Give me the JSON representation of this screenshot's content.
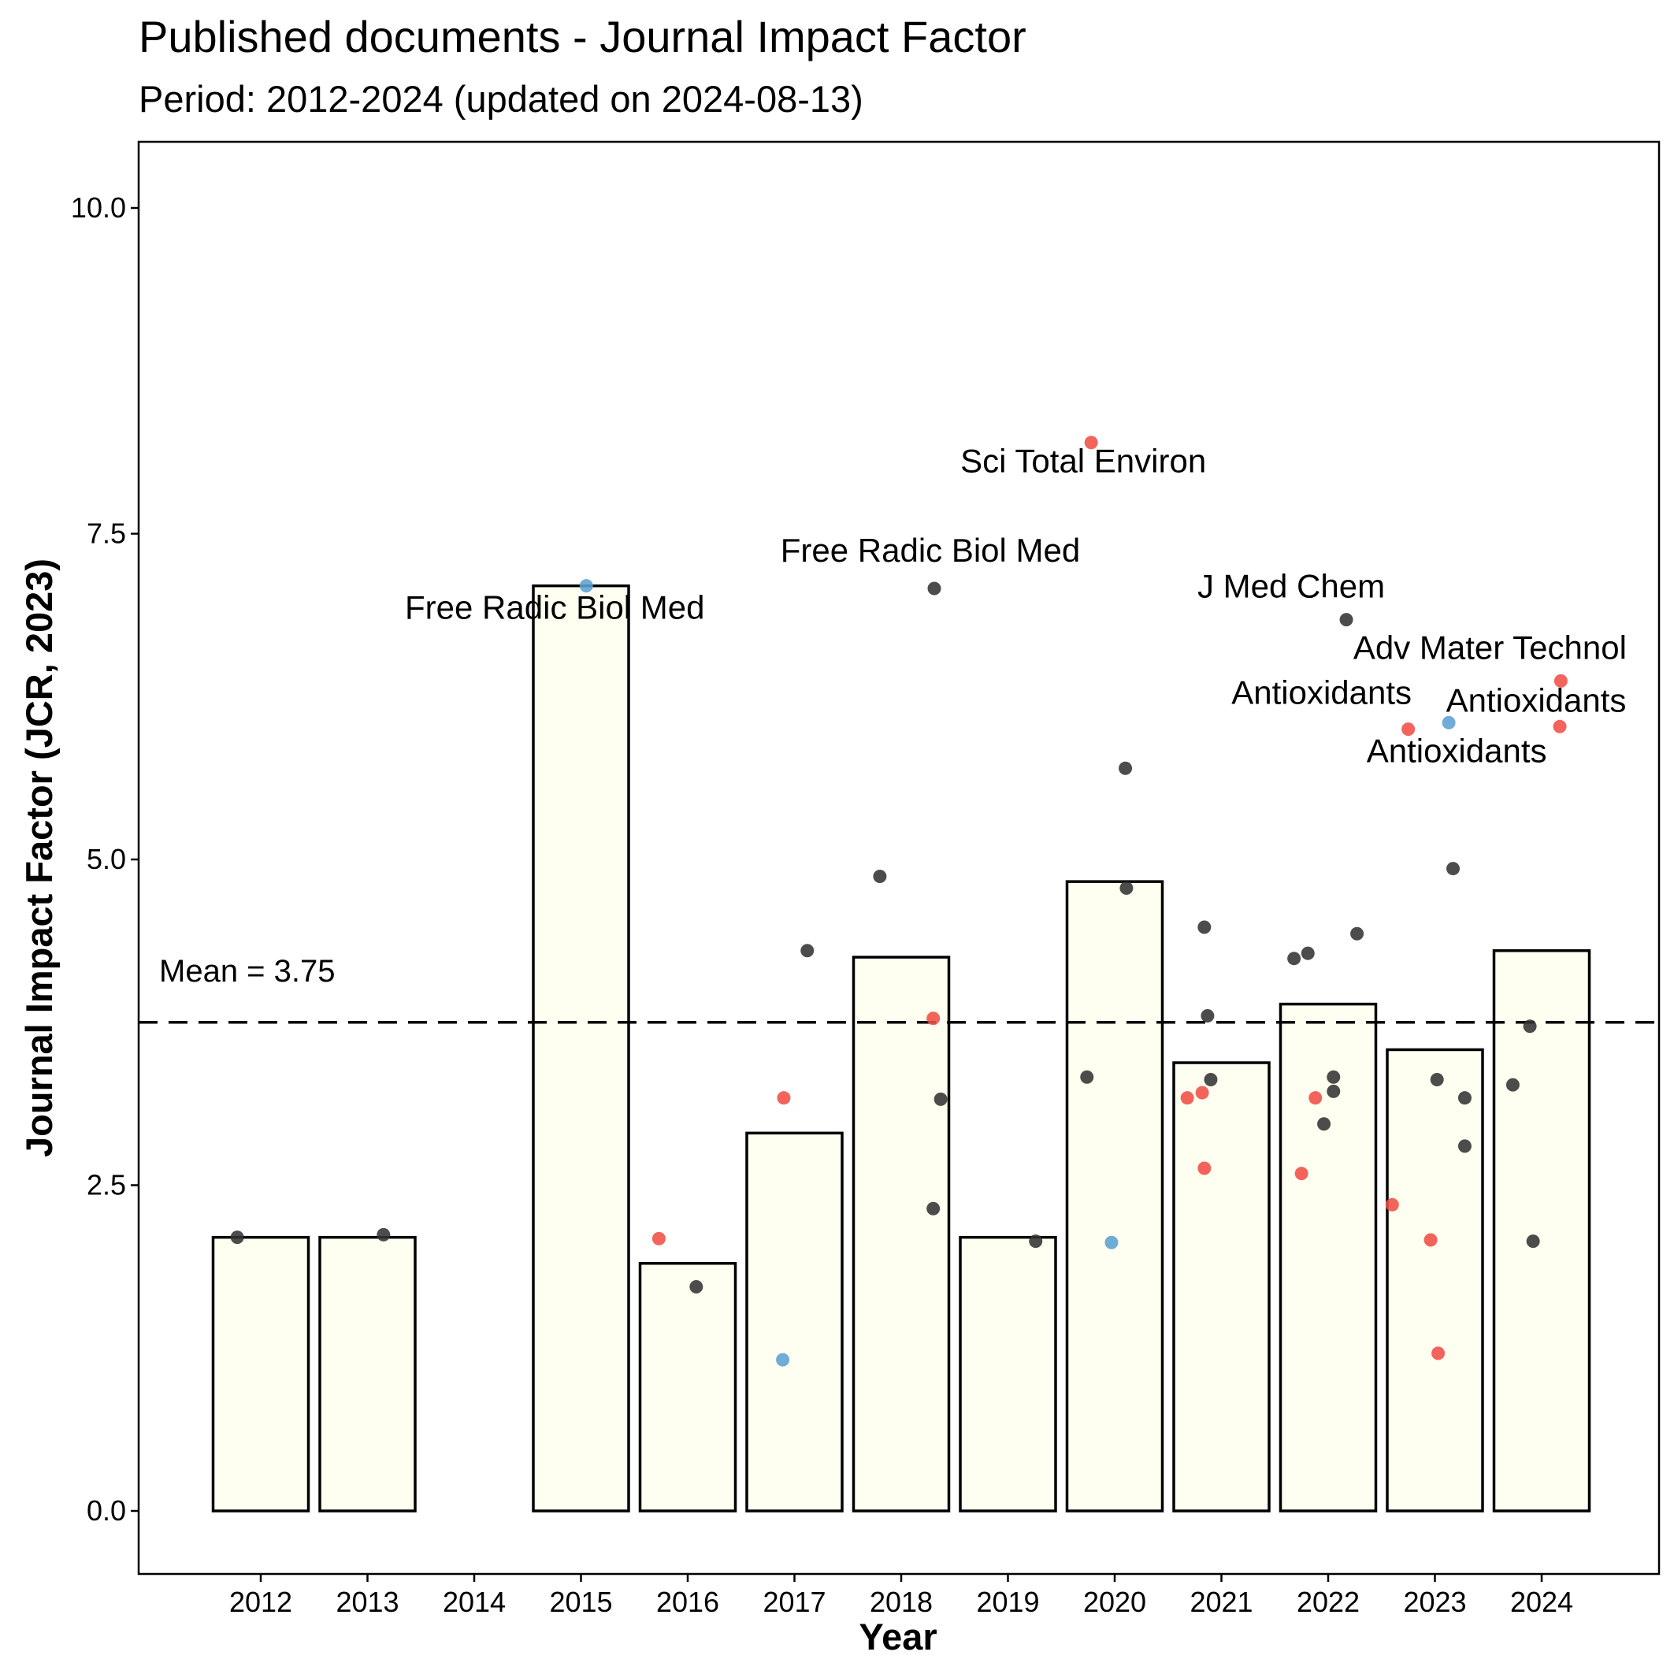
{
  "chart_data": {
    "type": "bar",
    "title": "Published documents - Journal Impact Factor",
    "subtitle": "Period: 2012-2024 (updated on 2024-08-13)",
    "xlabel": "Year",
    "ylabel": "Journal Impact Factor (JCR, 2023)",
    "ylim": [
      -0.5,
      10.5
    ],
    "yticks": [
      0.0,
      2.5,
      5.0,
      7.5,
      10.0
    ],
    "ytick_labels": [
      "0.0",
      "2.5",
      "5.0",
      "7.5",
      "10.0"
    ],
    "categories": [
      "2012",
      "2013",
      "2014",
      "2015",
      "2016",
      "2017",
      "2018",
      "2019",
      "2020",
      "2021",
      "2022",
      "2023",
      "2024"
    ],
    "bar_values": [
      2.1,
      2.1,
      null,
      7.1,
      1.9,
      2.9,
      4.25,
      2.1,
      4.83,
      3.44,
      3.89,
      3.54,
      4.3
    ],
    "mean": 3.75,
    "mean_label": "Mean = 3.75",
    "bar_fill": "#FEFFF0",
    "bar_stroke": "#000000",
    "point_colors": {
      "black": "#333333",
      "red": "#F04E45",
      "blue": "#5BA1D1"
    },
    "points": [
      {
        "year": "2012",
        "offset": -0.22,
        "value": 2.1,
        "color": "black"
      },
      {
        "year": "2013",
        "offset": 0.15,
        "value": 2.12,
        "color": "black"
      },
      {
        "year": "2015",
        "offset": 0.05,
        "value": 7.1,
        "color": "blue",
        "label": "Free Radic Biol Med"
      },
      {
        "year": "2016",
        "offset": -0.27,
        "value": 2.09,
        "color": "red"
      },
      {
        "year": "2016",
        "offset": 0.08,
        "value": 1.72,
        "color": "black"
      },
      {
        "year": "2017",
        "offset": -0.1,
        "value": 3.17,
        "color": "red"
      },
      {
        "year": "2017",
        "offset": 0.12,
        "value": 4.3,
        "color": "black"
      },
      {
        "year": "2017",
        "offset": -0.11,
        "value": 1.16,
        "color": "blue"
      },
      {
        "year": "2018",
        "offset": -0.2,
        "value": 4.87,
        "color": "black"
      },
      {
        "year": "2018",
        "offset": 0.31,
        "value": 7.08,
        "color": "black",
        "label": "Free Radic Biol Med"
      },
      {
        "year": "2018",
        "offset": 0.3,
        "value": 3.78,
        "color": "red"
      },
      {
        "year": "2018",
        "offset": 0.37,
        "value": 3.16,
        "color": "black"
      },
      {
        "year": "2018",
        "offset": 0.3,
        "value": 2.32,
        "color": "black"
      },
      {
        "year": "2019",
        "offset": 0.26,
        "value": 2.07,
        "color": "black"
      },
      {
        "year": "2020",
        "offset": -0.22,
        "value": 8.2,
        "color": "red",
        "label": "Sci Total Environ"
      },
      {
        "year": "2020",
        "offset": 0.1,
        "value": 5.7,
        "color": "black"
      },
      {
        "year": "2020",
        "offset": 0.11,
        "value": 4.78,
        "color": "black"
      },
      {
        "year": "2020",
        "offset": -0.26,
        "value": 3.33,
        "color": "black"
      },
      {
        "year": "2020",
        "offset": -0.03,
        "value": 2.06,
        "color": "blue"
      },
      {
        "year": "2021",
        "offset": -0.16,
        "value": 4.48,
        "color": "black"
      },
      {
        "year": "2021",
        "offset": -0.13,
        "value": 3.8,
        "color": "black"
      },
      {
        "year": "2021",
        "offset": -0.1,
        "value": 3.31,
        "color": "black"
      },
      {
        "year": "2021",
        "offset": -0.32,
        "value": 3.17,
        "color": "red"
      },
      {
        "year": "2021",
        "offset": -0.18,
        "value": 3.21,
        "color": "red"
      },
      {
        "year": "2021",
        "offset": -0.16,
        "value": 2.63,
        "color": "red"
      },
      {
        "year": "2022",
        "offset": -0.32,
        "value": 4.24,
        "color": "black"
      },
      {
        "year": "2022",
        "offset": -0.19,
        "value": 4.28,
        "color": "black"
      },
      {
        "year": "2022",
        "offset": 0.17,
        "value": 6.84,
        "color": "black",
        "label": "J Med Chem"
      },
      {
        "year": "2022",
        "offset": 0.27,
        "value": 4.43,
        "color": "black"
      },
      {
        "year": "2022",
        "offset": 0.05,
        "value": 3.33,
        "color": "black"
      },
      {
        "year": "2022",
        "offset": 0.05,
        "value": 3.22,
        "color": "black"
      },
      {
        "year": "2022",
        "offset": -0.12,
        "value": 3.17,
        "color": "red"
      },
      {
        "year": "2022",
        "offset": -0.04,
        "value": 2.97,
        "color": "black"
      },
      {
        "year": "2022",
        "offset": -0.25,
        "value": 2.59,
        "color": "red"
      },
      {
        "year": "2023",
        "offset": -0.25,
        "value": 6.0,
        "color": "red",
        "label": "Antioxidants"
      },
      {
        "year": "2023",
        "offset": 0.13,
        "value": 6.05,
        "color": "blue",
        "label": "Antioxidants"
      },
      {
        "year": "2023",
        "offset": 0.17,
        "value": 4.93,
        "color": "black"
      },
      {
        "year": "2023",
        "offset": 0.02,
        "value": 3.31,
        "color": "black"
      },
      {
        "year": "2023",
        "offset": 0.28,
        "value": 3.17,
        "color": "black"
      },
      {
        "year": "2023",
        "offset": 0.28,
        "value": 2.8,
        "color": "black"
      },
      {
        "year": "2023",
        "offset": -0.4,
        "value": 2.35,
        "color": "red"
      },
      {
        "year": "2023",
        "offset": -0.04,
        "value": 2.08,
        "color": "red"
      },
      {
        "year": "2023",
        "offset": 0.03,
        "value": 1.21,
        "color": "red"
      },
      {
        "year": "2024",
        "offset": 0.18,
        "value": 6.37,
        "color": "red",
        "label": "Adv Mater Technol"
      },
      {
        "year": "2024",
        "offset": 0.17,
        "value": 6.02,
        "color": "red",
        "label": "Antioxidants"
      },
      {
        "year": "2024",
        "offset": -0.27,
        "value": 3.27,
        "color": "black"
      },
      {
        "year": "2024",
        "offset": -0.11,
        "value": 3.72,
        "color": "black"
      },
      {
        "year": "2024",
        "offset": -0.08,
        "value": 2.07,
        "color": "black"
      }
    ]
  }
}
